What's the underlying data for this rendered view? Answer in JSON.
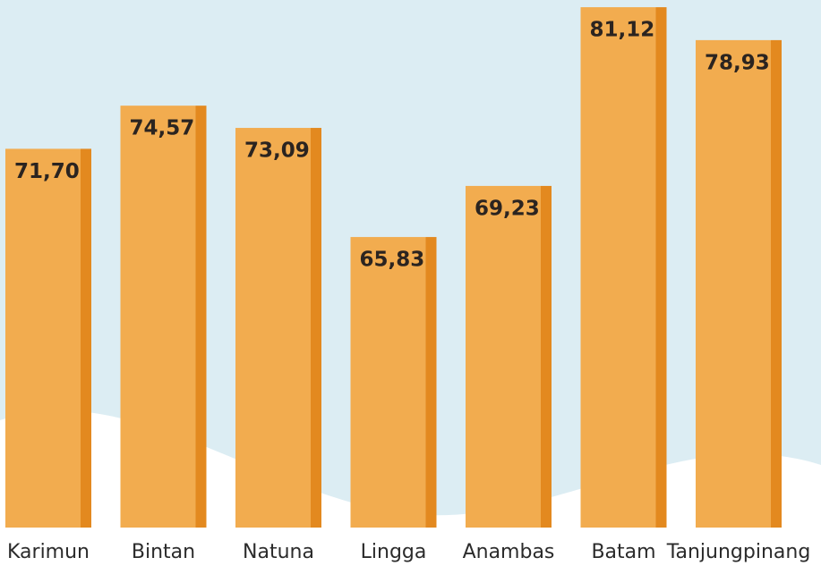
{
  "chart_data": {
    "type": "bar",
    "categories": [
      "Karimun",
      "Bintan",
      "Natuna",
      "Lingga",
      "Anambas",
      "Batam",
      "Tanjungpinang"
    ],
    "values": [
      71.7,
      74.57,
      73.09,
      65.83,
      69.23,
      81.12,
      78.93
    ],
    "value_labels": [
      "71,70",
      "74,57",
      "73,09",
      "65,83",
      "69,23",
      "81,12",
      "78,93"
    ],
    "color": "#f2ac4f",
    "ylim": [
      46.5,
      81.6
    ]
  }
}
